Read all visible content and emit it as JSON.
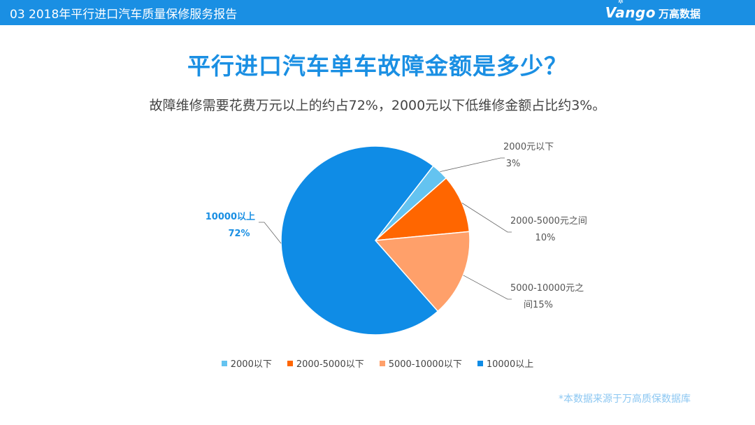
{
  "header": {
    "section_label": "03 2018年平行进口汽车质量保修服务报告",
    "brand_word": "Vango",
    "brand_cn": "万高数据"
  },
  "title": "平行进口汽车单车故障金额是多少？",
  "subtitle": "故障维修需要花费万元以上的约占72%，2000元以下低维修金额占比约3%。",
  "source_note": "*本数据来源于万高质保数据库",
  "chart_data": {
    "type": "pie",
    "categories": [
      "2000以下",
      "2000-5000以下",
      "5000-10000以下",
      "10000以上"
    ],
    "values": [
      3,
      10,
      15,
      72
    ],
    "unit": "%",
    "colors": [
      "#64c3f0",
      "#ff6600",
      "#ffa06a",
      "#0f8ce6"
    ],
    "slice_labels": [
      {
        "line1": "2000元以下",
        "line2": "3%"
      },
      {
        "line1": "2000-5000元之间",
        "line2": "10%"
      },
      {
        "line1": "5000-10000元之",
        "line2": "间15%"
      },
      {
        "line1": "10000以上",
        "line2": "72%"
      }
    ],
    "legend": {
      "placement": "bottom",
      "items": [
        "2000以下",
        "2000-5000以下",
        "5000-10000以下",
        "10000以上"
      ]
    }
  }
}
